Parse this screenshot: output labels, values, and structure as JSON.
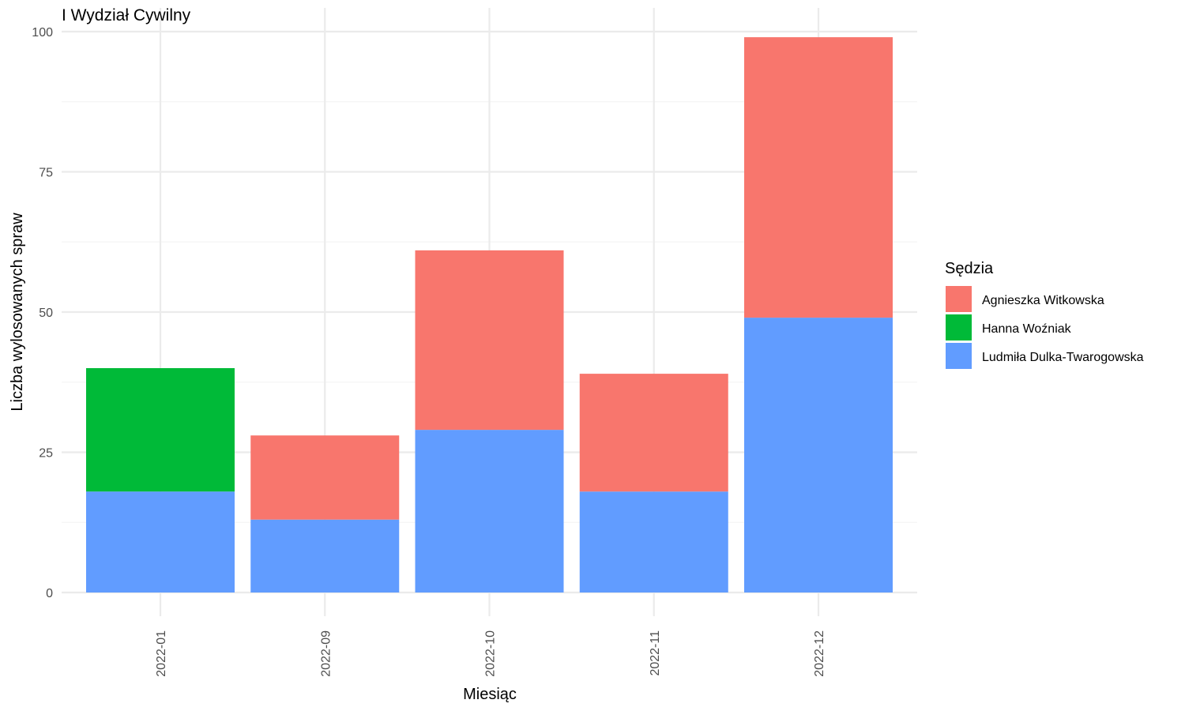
{
  "chart_data": {
    "type": "bar",
    "stacked": true,
    "title": "I Wydział Cywilny",
    "xlabel": "Miesiąc",
    "ylabel": "Liczba wylosowanych spraw",
    "categories": [
      "2022-01",
      "2022-09",
      "2022-10",
      "2022-11",
      "2022-12"
    ],
    "ylim": [
      0,
      100
    ],
    "yticks": [
      0,
      25,
      50,
      75,
      100
    ],
    "grid": true,
    "legend": {
      "title": "Sędzia",
      "placement": "right"
    },
    "series": [
      {
        "name": "Ludmiła Dulka-Twarogowska",
        "color": "#619CFF",
        "values": [
          18,
          13,
          29,
          18,
          49
        ]
      },
      {
        "name": "Hanna Woźniak",
        "color": "#00BA38",
        "values": [
          22,
          0,
          0,
          0,
          0
        ]
      },
      {
        "name": "Agnieszka Witkowska",
        "color": "#F8766D",
        "values": [
          0,
          15,
          32,
          21,
          50
        ]
      }
    ],
    "legend_order": [
      "Agnieszka Witkowska",
      "Hanna Woźniak",
      "Ludmiła Dulka-Twarogowska"
    ]
  }
}
